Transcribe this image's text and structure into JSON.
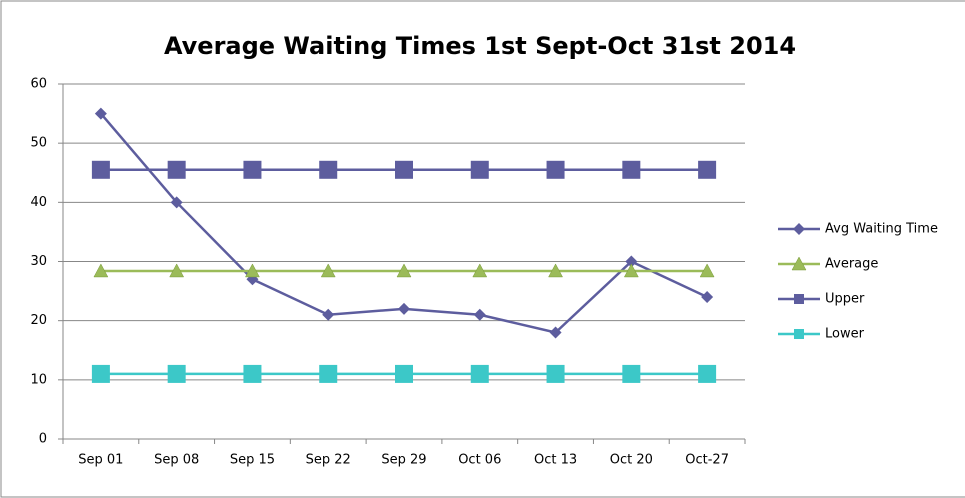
{
  "chart_data": {
    "type": "line",
    "title": "Average Waiting Times 1st Sept-Oct 31st 2014",
    "categories": [
      "Sep 01",
      "Sep 08",
      "Sep 15",
      "Sep 22",
      "Sep 29",
      "Oct 06",
      "Oct 13",
      "Oct 20",
      "Oct-27"
    ],
    "series": [
      {
        "name": "Avg Waiting Time",
        "color": "#5d5d9e",
        "marker": "diamond",
        "values": [
          55,
          40,
          27,
          21,
          22,
          21,
          18,
          30,
          24
        ]
      },
      {
        "name": "Average",
        "color": "#9bbb59",
        "marker": "triangle",
        "values": [
          28.4,
          28.4,
          28.4,
          28.4,
          28.4,
          28.4,
          28.4,
          28.4,
          28.4
        ]
      },
      {
        "name": "Upper",
        "color": "#5d5d9e",
        "marker": "square",
        "values": [
          45.5,
          45.5,
          45.5,
          45.5,
          45.5,
          45.5,
          45.5,
          45.5,
          45.5
        ]
      },
      {
        "name": "Lower",
        "color": "#3cc8c8",
        "marker": "square",
        "values": [
          11,
          11,
          11,
          11,
          11,
          11,
          11,
          11,
          11
        ]
      }
    ],
    "ylim": [
      0,
      60
    ],
    "yticks": [
      0,
      10,
      20,
      30,
      40,
      50,
      60
    ],
    "grid": true,
    "legend": "right"
  }
}
